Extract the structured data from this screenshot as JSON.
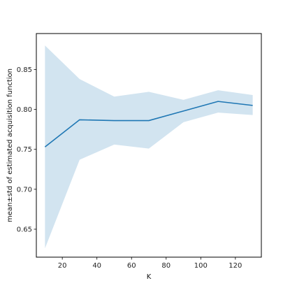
{
  "chart_data": {
    "type": "line",
    "title": "",
    "xlabel": "K",
    "ylabel": "mean±std of estimated acquisition function",
    "xlim": [
      5,
      135
    ],
    "ylim": [
      0.615,
      0.895
    ],
    "x_ticks": [
      20,
      40,
      60,
      80,
      100,
      120,
      140
    ],
    "x_tick_labels": [
      "20",
      "40",
      "60",
      "80",
      "100",
      "120",
      ""
    ],
    "y_ticks": [
      0.65,
      0.7,
      0.75,
      0.8,
      0.85
    ],
    "y_tick_labels": [
      "0.65",
      "0.70",
      "0.75",
      "0.80",
      "0.85"
    ],
    "grid": false,
    "series": [
      {
        "x": [
          10,
          30,
          50,
          70,
          90,
          110,
          130
        ],
        "mean": [
          0.753,
          0.787,
          0.786,
          0.786,
          0.798,
          0.81,
          0.805
        ],
        "lower": [
          0.626,
          0.737,
          0.756,
          0.751,
          0.784,
          0.796,
          0.793
        ],
        "upper": [
          0.88,
          0.838,
          0.816,
          0.822,
          0.812,
          0.824,
          0.818
        ],
        "line_color": "#1f77b4",
        "band_color": "#1f77b4"
      }
    ]
  }
}
